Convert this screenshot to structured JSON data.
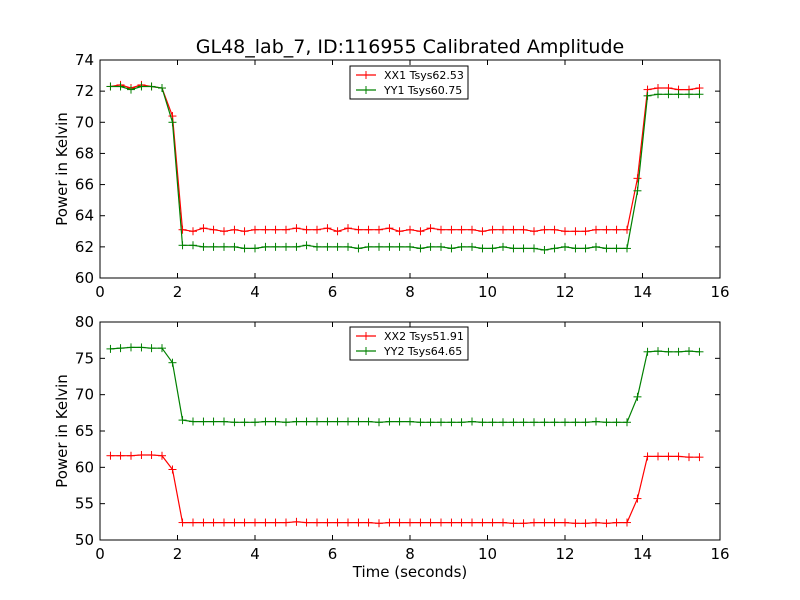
{
  "chart_data": [
    {
      "type": "line",
      "title": "GL48_lab_7, ID:116955 Calibrated Amplitude",
      "xlabel": "",
      "ylabel": "Power in Kelvin",
      "xlim": [
        0,
        16
      ],
      "ylim": [
        60,
        74
      ],
      "xticks": [
        0,
        2,
        4,
        6,
        8,
        10,
        12,
        14,
        16
      ],
      "yticks": [
        60,
        62,
        64,
        66,
        68,
        70,
        72,
        74
      ],
      "legend_position": "top-center",
      "grid": false,
      "x": [
        0.27,
        0.53,
        0.8,
        1.07,
        1.33,
        1.6,
        1.87,
        2.13,
        2.4,
        2.67,
        2.93,
        3.2,
        3.47,
        3.73,
        4.0,
        4.27,
        4.53,
        4.8,
        5.07,
        5.33,
        5.6,
        5.87,
        6.13,
        6.4,
        6.67,
        6.93,
        7.2,
        7.47,
        7.73,
        8.0,
        8.27,
        8.53,
        8.8,
        9.07,
        9.33,
        9.6,
        9.87,
        10.13,
        10.4,
        10.67,
        10.93,
        11.2,
        11.47,
        11.73,
        12.0,
        12.27,
        12.53,
        12.8,
        13.07,
        13.33,
        13.6,
        13.87,
        14.13,
        14.4,
        14.67,
        14.93,
        15.2,
        15.47
      ],
      "series": [
        {
          "name": "XX1 Tsys62.53",
          "color": "#ff0000",
          "values": [
            72.3,
            72.4,
            72.2,
            72.4,
            72.3,
            72.2,
            70.4,
            63.1,
            63.0,
            63.2,
            63.1,
            63.0,
            63.1,
            63.0,
            63.1,
            63.1,
            63.1,
            63.1,
            63.2,
            63.1,
            63.1,
            63.2,
            63.0,
            63.2,
            63.1,
            63.1,
            63.1,
            63.2,
            63.0,
            63.1,
            63.0,
            63.2,
            63.1,
            63.1,
            63.1,
            63.1,
            63.0,
            63.1,
            63.1,
            63.1,
            63.1,
            63.0,
            63.1,
            63.1,
            63.0,
            63.0,
            63.0,
            63.1,
            63.1,
            63.1,
            63.1,
            66.4,
            72.1,
            72.2,
            72.2,
            72.1,
            72.1,
            72.2
          ]
        },
        {
          "name": "YY1 Tsys60.75",
          "color": "#008000",
          "values": [
            72.3,
            72.3,
            72.1,
            72.3,
            72.3,
            72.2,
            70.0,
            62.1,
            62.1,
            62.0,
            62.0,
            62.0,
            62.0,
            61.9,
            61.9,
            62.0,
            62.0,
            62.0,
            62.0,
            62.1,
            62.0,
            62.0,
            62.0,
            62.0,
            61.9,
            62.0,
            62.0,
            62.0,
            62.0,
            62.0,
            61.9,
            62.0,
            62.0,
            61.9,
            62.0,
            62.0,
            61.9,
            61.9,
            62.0,
            61.9,
            61.9,
            61.9,
            61.8,
            61.9,
            62.0,
            61.9,
            61.9,
            62.0,
            61.9,
            61.9,
            61.9,
            65.6,
            71.7,
            71.8,
            71.8,
            71.8,
            71.8,
            71.8
          ]
        }
      ]
    },
    {
      "type": "line",
      "title": "",
      "xlabel": "Time (seconds)",
      "ylabel": "Power in Kelvin",
      "xlim": [
        0,
        16
      ],
      "ylim": [
        50,
        80
      ],
      "xticks": [
        0,
        2,
        4,
        6,
        8,
        10,
        12,
        14,
        16
      ],
      "yticks": [
        50,
        55,
        60,
        65,
        70,
        75,
        80
      ],
      "legend_position": "top-center",
      "grid": false,
      "x": [
        0.27,
        0.53,
        0.8,
        1.07,
        1.33,
        1.6,
        1.87,
        2.13,
        2.4,
        2.67,
        2.93,
        3.2,
        3.47,
        3.73,
        4.0,
        4.27,
        4.53,
        4.8,
        5.07,
        5.33,
        5.6,
        5.87,
        6.13,
        6.4,
        6.67,
        6.93,
        7.2,
        7.47,
        7.73,
        8.0,
        8.27,
        8.53,
        8.8,
        9.07,
        9.33,
        9.6,
        9.87,
        10.13,
        10.4,
        10.67,
        10.93,
        11.2,
        11.47,
        11.73,
        12.0,
        12.27,
        12.53,
        12.8,
        13.07,
        13.33,
        13.6,
        13.87,
        14.13,
        14.4,
        14.67,
        14.93,
        15.2,
        15.47
      ],
      "series": [
        {
          "name": "XX2 Tsys51.91",
          "color": "#ff0000",
          "values": [
            61.6,
            61.6,
            61.6,
            61.7,
            61.7,
            61.6,
            59.7,
            52.4,
            52.4,
            52.4,
            52.4,
            52.4,
            52.4,
            52.4,
            52.4,
            52.4,
            52.4,
            52.4,
            52.5,
            52.4,
            52.4,
            52.4,
            52.4,
            52.4,
            52.4,
            52.4,
            52.3,
            52.4,
            52.4,
            52.4,
            52.4,
            52.4,
            52.4,
            52.4,
            52.4,
            52.4,
            52.4,
            52.4,
            52.4,
            52.3,
            52.3,
            52.4,
            52.4,
            52.4,
            52.4,
            52.3,
            52.3,
            52.4,
            52.3,
            52.4,
            52.4,
            55.7,
            61.5,
            61.5,
            61.5,
            61.5,
            61.4,
            61.4
          ]
        },
        {
          "name": "YY2 Tsys64.65",
          "color": "#008000",
          "values": [
            76.3,
            76.4,
            76.5,
            76.5,
            76.4,
            76.4,
            74.4,
            66.5,
            66.3,
            66.3,
            66.3,
            66.3,
            66.2,
            66.2,
            66.2,
            66.3,
            66.3,
            66.2,
            66.3,
            66.3,
            66.3,
            66.3,
            66.3,
            66.3,
            66.3,
            66.3,
            66.2,
            66.3,
            66.3,
            66.3,
            66.2,
            66.2,
            66.2,
            66.2,
            66.2,
            66.3,
            66.2,
            66.2,
            66.2,
            66.2,
            66.2,
            66.2,
            66.2,
            66.2,
            66.2,
            66.2,
            66.2,
            66.3,
            66.2,
            66.2,
            66.2,
            69.7,
            75.9,
            76.0,
            75.9,
            75.9,
            76.0,
            75.9
          ]
        }
      ]
    }
  ]
}
